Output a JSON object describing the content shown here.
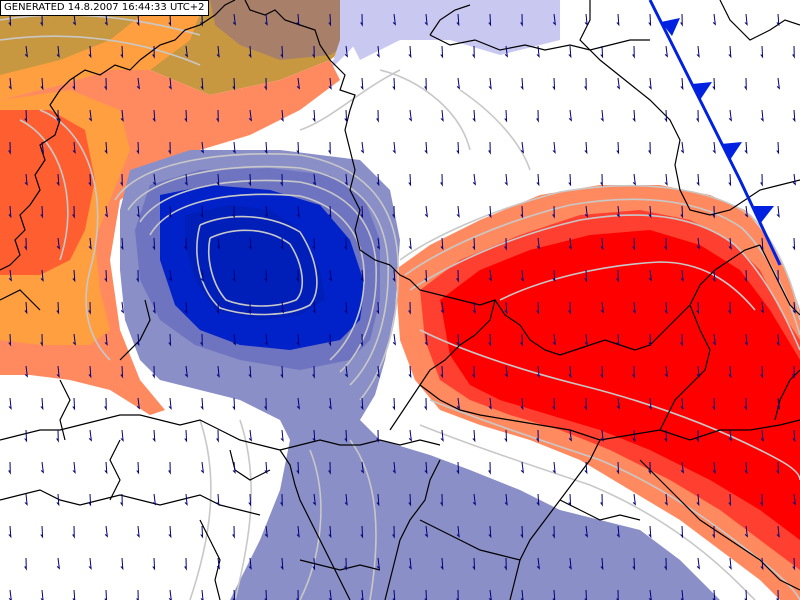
{
  "header": {
    "generated_stamp": "GENERATED 14.8.2007 16:44:33 UTC+2"
  },
  "colors": {
    "cold_core": "#0022c8",
    "cold_shade": "#8a8fc7",
    "cold_light": "#c8c8f0",
    "warm_core": "#ff0000",
    "warm_mid": "#ff8a60",
    "warm_orange": "#ff9f40",
    "warm_red_orange": "#ff5e30",
    "warm_brown": "#c89840",
    "warm_brown_dark": "#a8806a",
    "isoline": "#c8c8c8",
    "border": "#000000",
    "wind_arrow": "#00007a",
    "cold_front": "#0022e0"
  },
  "map": {
    "fields": [
      "cold-anomaly-core",
      "cold-anomaly-shade",
      "warm-anomaly-core",
      "warm-anomaly-orange",
      "warm-anomaly-brown"
    ],
    "overlays": [
      "isolines",
      "wind-vectors",
      "country-borders",
      "cold-front"
    ],
    "wind_direction_description": "from north-northwest"
  }
}
